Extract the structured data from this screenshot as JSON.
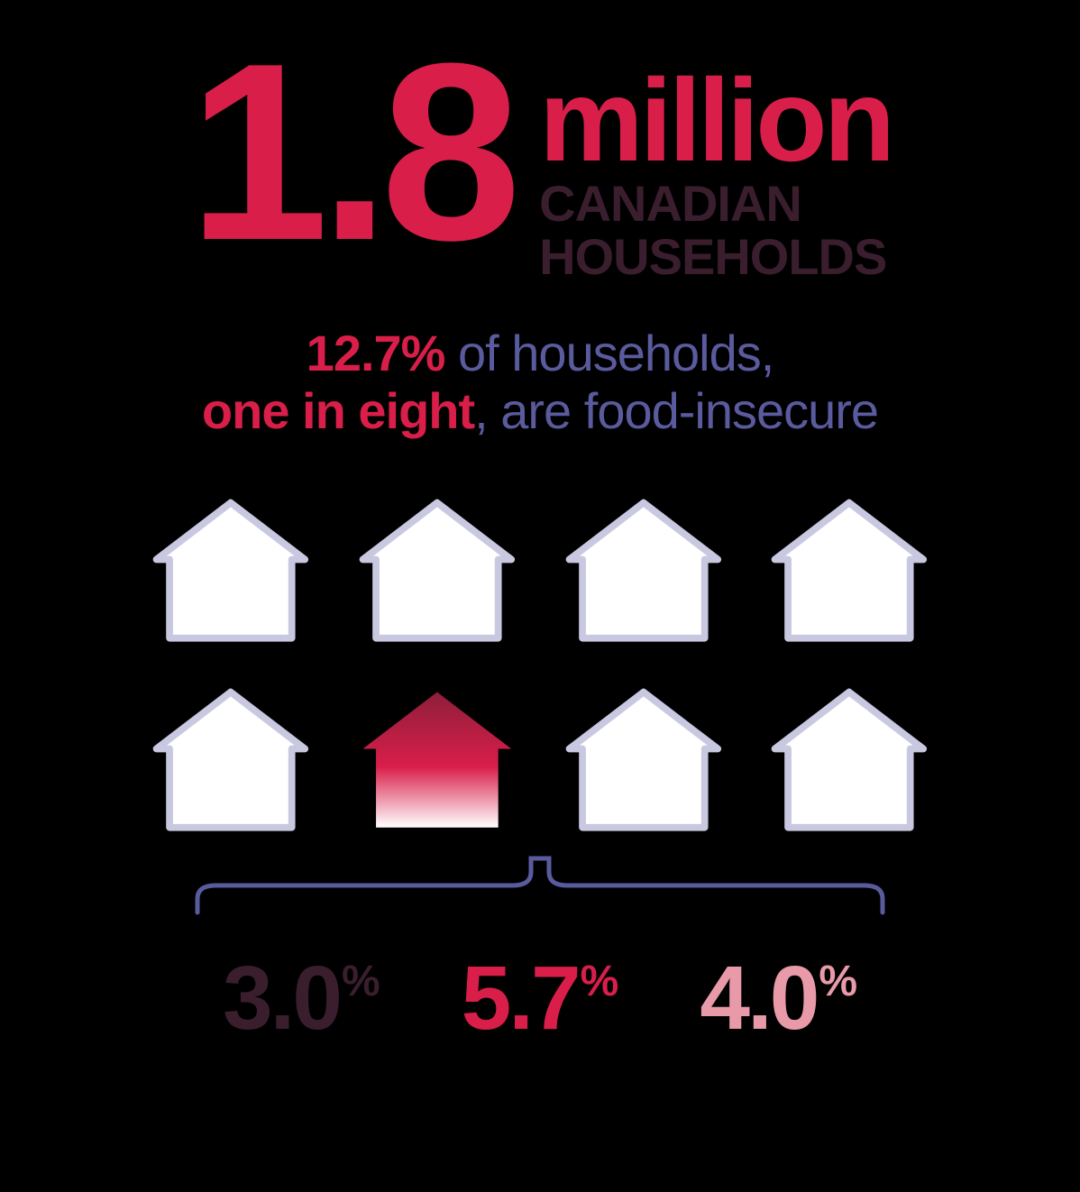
{
  "colors": {
    "background": "#000000",
    "crimson": "#d91e4a",
    "dark_plum": "#3a1e2e",
    "periwinkle": "#5a5a9e",
    "light_lavender": "#c8c8e0",
    "white": "#ffffff",
    "pink": "#e89aa8",
    "dark_crimson": "#8e1e3a"
  },
  "headline": {
    "number": "1.8",
    "unit": "million",
    "label_line1": "CANADIAN",
    "label_line2": "HOUSEHOLDS"
  },
  "subtitle": {
    "pct": "12.7%",
    "text1": " of households,",
    "ratio": "one in eight",
    "text2": ", are food-insecure"
  },
  "houses": {
    "total": 8,
    "columns": 4,
    "highlighted_index": 5,
    "outline_color": "#c8c8e0",
    "outline_stroke_width": 8,
    "highlight_gradient_top": "#8e1e3a",
    "highlight_gradient_mid": "#d91e4a",
    "highlight_gradient_bottom": "#ffffff"
  },
  "brace": {
    "stroke_color": "#5a5a9e",
    "stroke_width": 5
  },
  "breakdown": [
    {
      "value": "3.0",
      "symbol": "%",
      "color": "#3a1e2e"
    },
    {
      "value": "5.7",
      "symbol": "%",
      "color": "#d91e4a"
    },
    {
      "value": "4.0",
      "symbol": "%",
      "color": "#e89aa8"
    }
  ],
  "typography": {
    "big_number_size": 280,
    "million_size": 130,
    "sublabel_size": 56,
    "subtitle_size": 56,
    "pct_value_size": 100,
    "pct_symbol_size": 48
  }
}
